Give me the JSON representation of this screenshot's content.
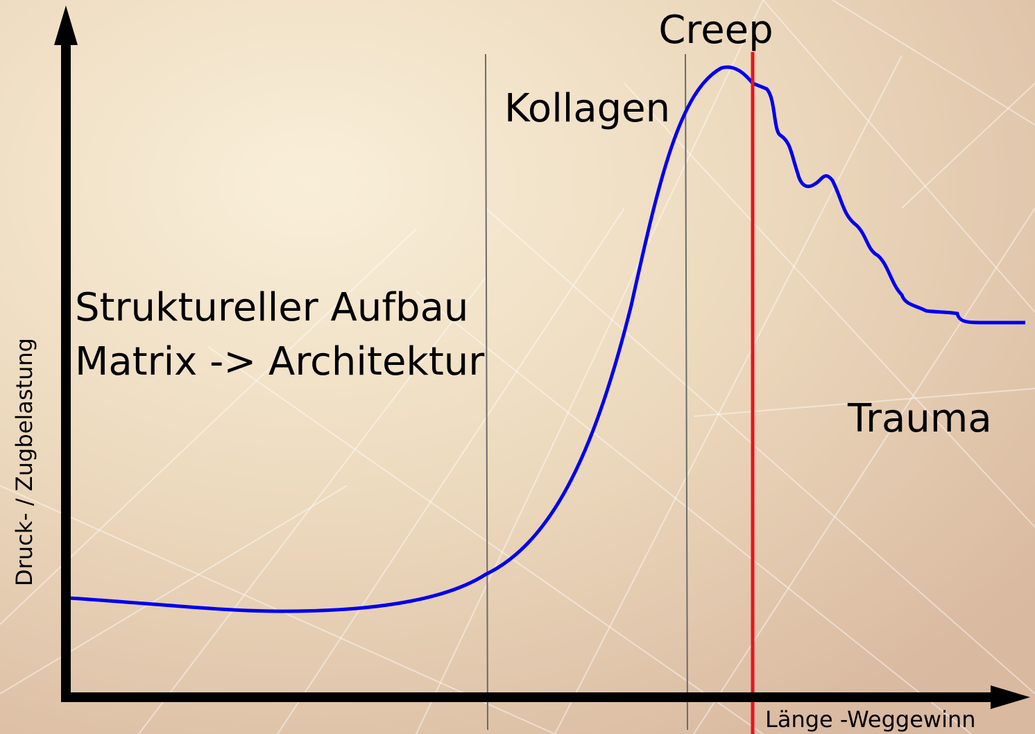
{
  "title": "Creep",
  "axes": {
    "y_label": "Druck- / Zugbelastung",
    "x_label": "Länge -Weggewinn"
  },
  "regions": {
    "structure": [
      "Struktureller Aufbau",
      "Matrix -> Architektur"
    ],
    "collagen": "Kollagen",
    "trauma": "Trauma"
  }
}
